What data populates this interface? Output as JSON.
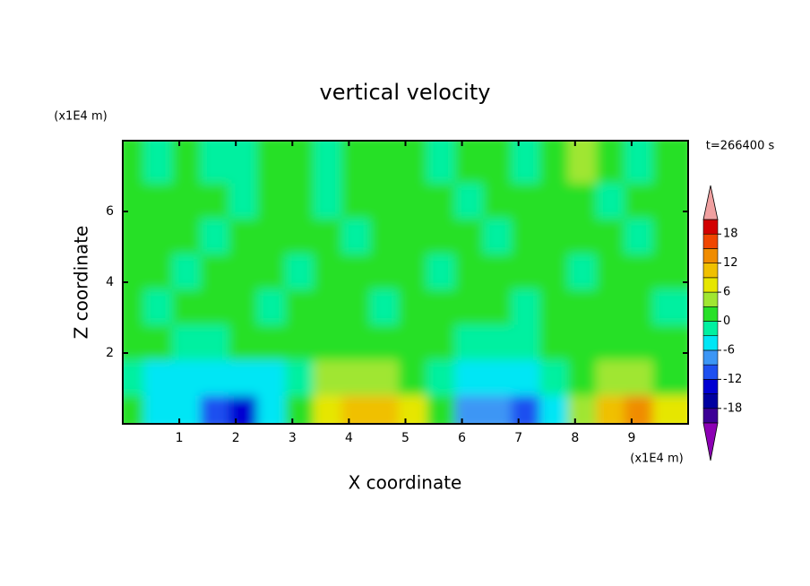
{
  "chart_data": {
    "type": "contour",
    "title": "vertical velocity",
    "xlabel": "X coordinate",
    "ylabel": "Z coordinate",
    "x_unit": "(x1E4 m)",
    "y_unit": "(x1E4 m)",
    "annotation": "t=266400 s",
    "xlim": [
      0,
      10
    ],
    "xticks": [
      1,
      2,
      3,
      4,
      5,
      6,
      7,
      8,
      9
    ],
    "ylim": [
      0,
      8
    ],
    "yticks": [
      2,
      4,
      6
    ],
    "x": [
      0.25,
      0.75,
      1.25,
      1.75,
      2.25,
      2.75,
      3.25,
      3.75,
      4.25,
      4.75,
      5.25,
      5.75,
      6.25,
      6.75,
      7.25,
      7.75,
      8.25,
      8.75,
      9.25,
      9.75
    ],
    "z": [
      0.5,
      1.5,
      2.5,
      3.5,
      4.5,
      5.5,
      6.5,
      7.5
    ],
    "values": [
      [
        0,
        -4,
        -5,
        -10,
        -13,
        -6,
        2,
        7,
        10,
        9,
        6,
        0,
        -7,
        -8,
        -12,
        -4,
        3,
        9,
        13,
        6
      ],
      [
        -1,
        -4,
        -5,
        -5,
        -6,
        -4,
        -1,
        3,
        5,
        4,
        2,
        -1,
        -4,
        -5,
        -4,
        -3,
        0,
        3,
        5,
        2
      ],
      [
        1,
        0,
        -2,
        -1,
        0,
        1,
        2,
        1,
        0,
        1,
        2,
        0,
        -1,
        -2,
        -1,
        0,
        1,
        2,
        0,
        1
      ],
      [
        1,
        -1,
        2,
        0,
        1,
        -1,
        0,
        2,
        1,
        -1,
        2,
        1,
        0,
        2,
        -1,
        1,
        2,
        0,
        1,
        -1
      ],
      [
        0,
        2,
        -1,
        1,
        2,
        0,
        -1,
        1,
        2,
        0,
        1,
        -1,
        2,
        0,
        1,
        2,
        -1,
        0,
        2,
        1
      ],
      [
        1,
        0,
        2,
        -1,
        0,
        2,
        1,
        0,
        -1,
        2,
        0,
        1,
        2,
        -1,
        0,
        1,
        2,
        1,
        -1,
        0
      ],
      [
        2,
        1,
        0,
        1,
        -1,
        0,
        2,
        -1,
        0,
        1,
        2,
        0,
        -1,
        1,
        2,
        0,
        1,
        -1,
        2,
        1
      ],
      [
        0,
        -2,
        2,
        -1,
        -2,
        1,
        0,
        -1,
        2,
        0,
        1,
        -2,
        0,
        1,
        -1,
        2,
        3,
        0,
        -1,
        2
      ]
    ],
    "levels": [
      -21,
      -18,
      -15,
      -12,
      -9,
      -6,
      -3,
      0,
      3,
      6,
      9,
      12,
      15,
      18,
      21
    ],
    "colors": [
      "#3c0096",
      "#0000a0",
      "#0000d2",
      "#1e50f0",
      "#3c96f5",
      "#00e6f5",
      "#00f0a0",
      "#28e028",
      "#a0e632",
      "#e6e600",
      "#f0c000",
      "#f08c00",
      "#f04600",
      "#d20000"
    ],
    "under_color": "#8c00b4",
    "over_color": "#f0a0a0",
    "cbar_ticks": [
      -18,
      -12,
      -6,
      0,
      6,
      12,
      18
    ]
  }
}
